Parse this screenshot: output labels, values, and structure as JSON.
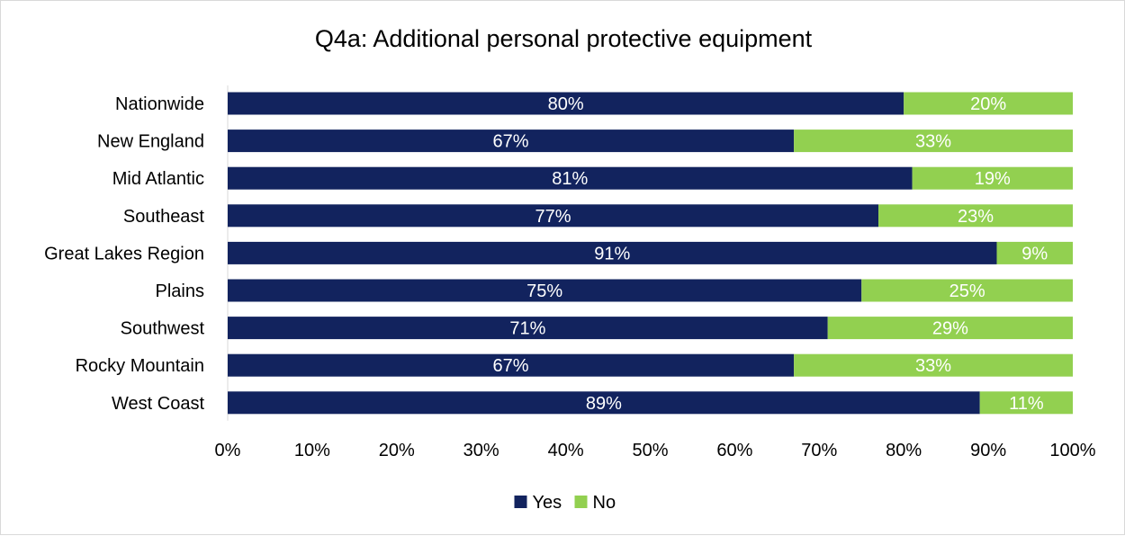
{
  "chart_data": {
    "type": "bar",
    "orientation": "horizontal",
    "stacked": true,
    "title": "Q4a: Additional personal protective equipment",
    "categories": [
      "Nationwide",
      "New England",
      "Mid Atlantic",
      "Southeast",
      "Great Lakes Region",
      "Plains",
      "Southwest",
      "Rocky Mountain",
      "West Coast"
    ],
    "series": [
      {
        "name": "Yes",
        "color": "#12235e",
        "values": [
          80,
          67,
          81,
          77,
          91,
          75,
          71,
          67,
          89
        ],
        "labels": [
          "80%",
          "67%",
          "81%",
          "77%",
          "91%",
          "75%",
          "71%",
          "67%",
          "89%"
        ]
      },
      {
        "name": "No",
        "color": "#92d050",
        "values": [
          20,
          33,
          19,
          23,
          9,
          25,
          29,
          33,
          11
        ],
        "labels": [
          "20%",
          "33%",
          "19%",
          "23%",
          "9%",
          "25%",
          "29%",
          "33%",
          "11%"
        ]
      }
    ],
    "xlim": [
      0,
      100
    ],
    "x_ticks": [
      0,
      10,
      20,
      30,
      40,
      50,
      60,
      70,
      80,
      90,
      100
    ],
    "x_tick_labels": [
      "0%",
      "10%",
      "20%",
      "30%",
      "40%",
      "50%",
      "60%",
      "70%",
      "80%",
      "90%",
      "100%"
    ],
    "grid": false,
    "legend_position": "bottom"
  }
}
